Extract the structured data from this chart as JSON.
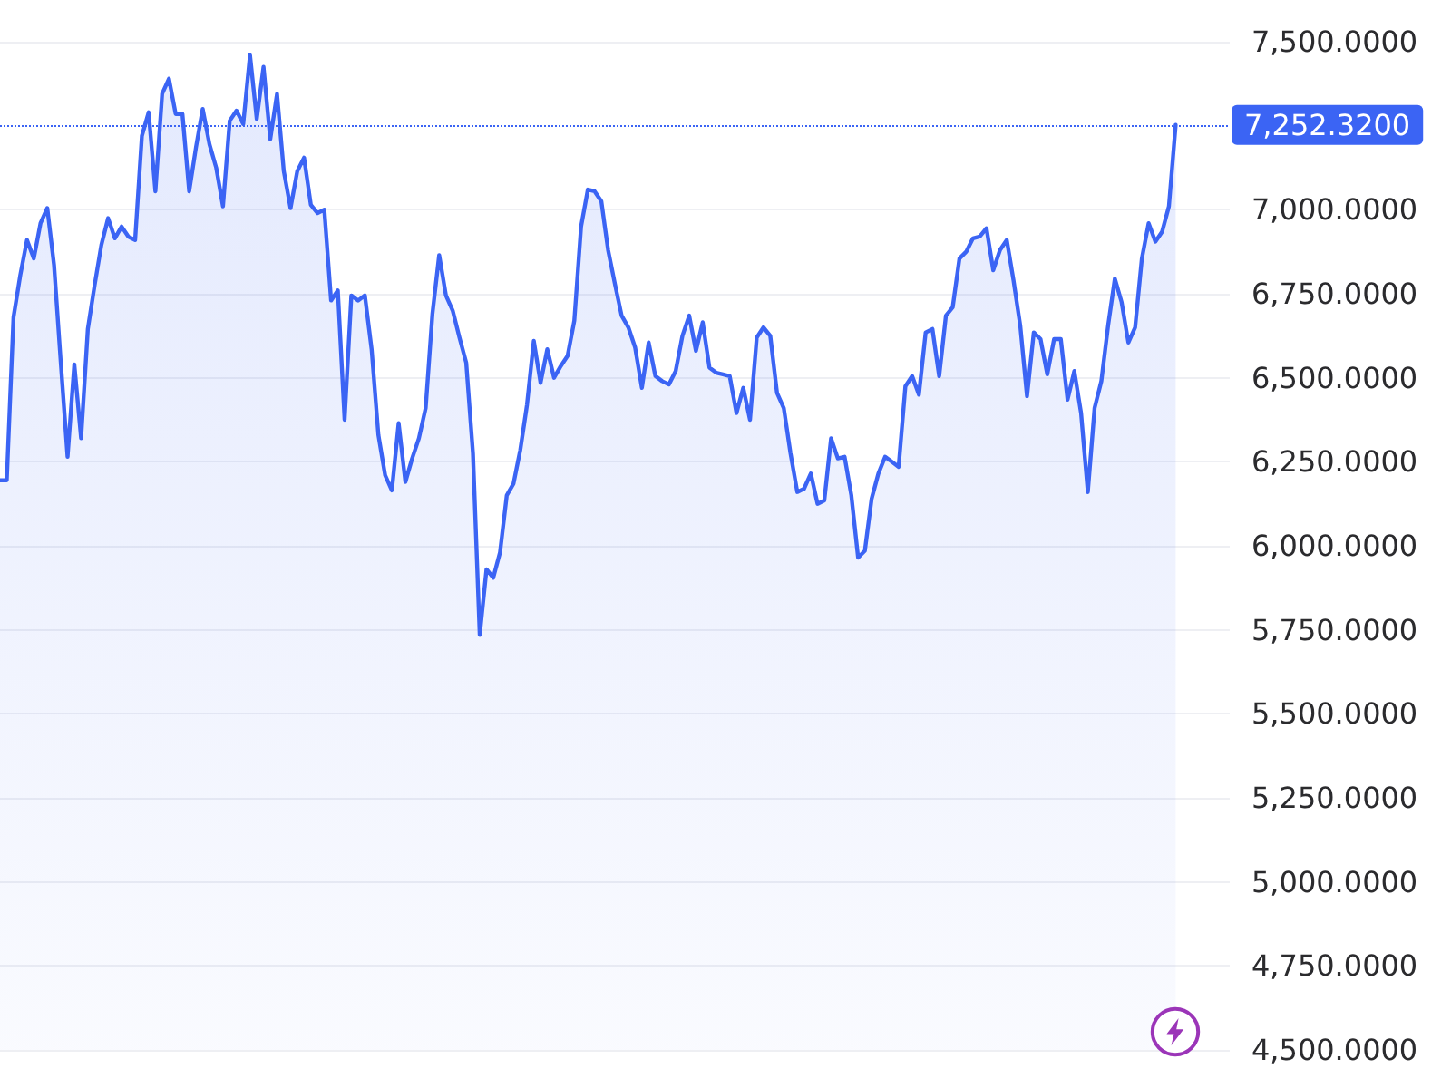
{
  "chart_data": {
    "type": "area",
    "categories": [
      null,
      null,
      null,
      null,
      null,
      null,
      null,
      null,
      null,
      null,
      null,
      null,
      null,
      null,
      null,
      null,
      null,
      null,
      null,
      null,
      null,
      null,
      null,
      null,
      null,
      null,
      null,
      null,
      null,
      null,
      null,
      null,
      null,
      null,
      null,
      null,
      null,
      null,
      null,
      null,
      null,
      null,
      null,
      null,
      null,
      null,
      null,
      null,
      null,
      null,
      null,
      null,
      null,
      null,
      null,
      null,
      null,
      null,
      null,
      null,
      null,
      null,
      null,
      null,
      null,
      null,
      null,
      null,
      null,
      null,
      null,
      null,
      null,
      null,
      null,
      null,
      null,
      null,
      null,
      null,
      null,
      null,
      null,
      null,
      null,
      null,
      null,
      null,
      null,
      null,
      null,
      null,
      null,
      null,
      null,
      null,
      null,
      null,
      null,
      null,
      null,
      null,
      null,
      null,
      null,
      null,
      null,
      null,
      null,
      null,
      null,
      null,
      null,
      null,
      null,
      null,
      null,
      null,
      null,
      null,
      null,
      null,
      null,
      null,
      null,
      null,
      null,
      null,
      null,
      null,
      null,
      null,
      null,
      null,
      null,
      null,
      null,
      null,
      null,
      null,
      null,
      null,
      null,
      null,
      null,
      null,
      null,
      null,
      null,
      null,
      null,
      null,
      null,
      null,
      null,
      null,
      null,
      null,
      null,
      null,
      null,
      null,
      null,
      null,
      null,
      null,
      null,
      null,
      null,
      null,
      null,
      null,
      null,
      null,
      null
    ],
    "values": [
      6195,
      6195,
      6680,
      6805,
      6910,
      6855,
      6960,
      7005,
      6835,
      6545,
      6265,
      6540,
      6320,
      6645,
      6775,
      6895,
      6975,
      6915,
      6950,
      6920,
      6910,
      7220,
      7290,
      7055,
      7345,
      7390,
      7285,
      7285,
      7055,
      7185,
      7300,
      7195,
      7125,
      7010,
      7265,
      7295,
      7255,
      7460,
      7270,
      7425,
      7210,
      7345,
      7115,
      7005,
      7115,
      7155,
      7015,
      6990,
      7000,
      6730,
      6760,
      6375,
      6745,
      6730,
      6745,
      6585,
      6330,
      6210,
      6165,
      6365,
      6190,
      6260,
      6320,
      6410,
      6690,
      6865,
      6745,
      6700,
      6620,
      6545,
      6275,
      5735,
      5930,
      5905,
      5980,
      6150,
      6185,
      6285,
      6420,
      6610,
      6485,
      6585,
      6500,
      6535,
      6565,
      6670,
      6950,
      7060,
      7055,
      7025,
      6880,
      6780,
      6685,
      6650,
      6590,
      6470,
      6605,
      6505,
      6490,
      6480,
      6520,
      6625,
      6685,
      6580,
      6665,
      6530,
      6515,
      6510,
      6505,
      6395,
      6470,
      6375,
      6620,
      6650,
      6625,
      6455,
      6410,
      6275,
      6160,
      6170,
      6215,
      6125,
      6135,
      6320,
      6260,
      6265,
      6150,
      5965,
      5985,
      6140,
      6215,
      6265,
      6250,
      6235,
      6475,
      6505,
      6450,
      6635,
      6645,
      6505,
      6685,
      6710,
      6855,
      6875,
      6915,
      6920,
      6945,
      6820,
      6880,
      6910,
      6790,
      6655,
      6445,
      6635,
      6615,
      6510,
      6615,
      6615,
      6435,
      6520,
      6395,
      6160,
      6410,
      6490,
      6655,
      6795,
      6725,
      6605,
      6650,
      6855,
      6960,
      6905,
      6935,
      7010,
      7252.32
    ],
    "color": "#3b64f4",
    "ylim": [
      4500,
      7500
    ],
    "yticks": [
      {
        "value": 4500,
        "label": "4,500.0000"
      },
      {
        "value": 4750,
        "label": "4,750.0000"
      },
      {
        "value": 5000,
        "label": "5,000.0000"
      },
      {
        "value": 5250,
        "label": "5,250.0000"
      },
      {
        "value": 5500,
        "label": "5,500.0000"
      },
      {
        "value": 5750,
        "label": "5,750.0000"
      },
      {
        "value": 6000,
        "label": "6,000.0000"
      },
      {
        "value": 6250,
        "label": "6,250.0000"
      },
      {
        "value": 6500,
        "label": "6,500.0000"
      },
      {
        "value": 6750,
        "label": "6,750.0000"
      },
      {
        "value": 7000,
        "label": "7,000.0000"
      },
      {
        "value": 7500,
        "label": "7,500.0000"
      }
    ],
    "grid": "y",
    "tick_labels": "y",
    "marker": "none",
    "line_style": "solid",
    "ref_lines": [
      {
        "axis": "y",
        "value": 7252.32,
        "label": "7,252.3200",
        "color": "#3b64f4",
        "line_style": "dotted"
      }
    ]
  }
}
